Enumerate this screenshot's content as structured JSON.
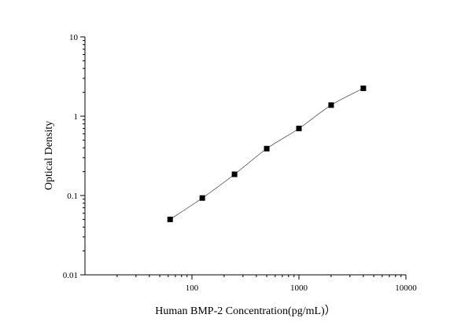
{
  "chart_data": {
    "type": "scatter",
    "xscale": "log",
    "yscale": "log",
    "xlim": [
      10,
      10000
    ],
    "ylim": [
      0.01,
      10
    ],
    "xticks": [
      100,
      1000,
      10000
    ],
    "xtick_labels": [
      "100",
      "1000",
      "10000"
    ],
    "yticks": [
      0.01,
      0.1,
      1,
      10
    ],
    "ytick_labels": [
      "0.01",
      "0.1",
      "1",
      "10"
    ],
    "xlabel": "Human BMP-2 Concentration(pg/mL)）",
    "ylabel": "Optical Density",
    "title": "",
    "grid": false,
    "series": [
      {
        "x": [
          62.5,
          125,
          250,
          500,
          1000,
          2000,
          4000
        ],
        "y": [
          0.05,
          0.093,
          0.185,
          0.39,
          0.7,
          1.38,
          2.25
        ],
        "marker": "square",
        "fit_line": true,
        "color": "#000000"
      }
    ]
  }
}
